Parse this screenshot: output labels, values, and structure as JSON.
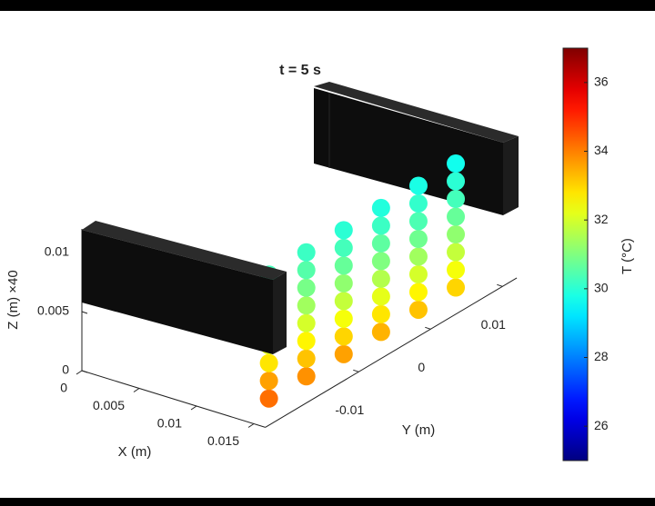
{
  "chart_data": {
    "type": "scatter3d",
    "title": "t = 5 s",
    "xlabel": "X (m)",
    "ylabel": "Y (m)",
    "zlabel": "Z (m) ×40",
    "colorbar_label": "T (°C)",
    "xlim": [
      0,
      0.016
    ],
    "ylim": [
      -0.023,
      0.012
    ],
    "zlim": [
      0,
      0.012
    ],
    "xticks": [
      0,
      0.005,
      0.01,
      0.015
    ],
    "yticks": [
      -0.01,
      0,
      0.01
    ],
    "zticks": [
      0,
      0.005,
      0.01
    ],
    "clim": [
      25,
      37
    ],
    "cticks": [
      26,
      28,
      30,
      32,
      34,
      36
    ],
    "colormap": "jet",
    "points": {
      "x": [
        0.014,
        0.014,
        0.014,
        0.014,
        0.014,
        0.014,
        0.014,
        0.014,
        0.014,
        0.014,
        0.014,
        0.014,
        0.014,
        0.014,
        0.014,
        0.014,
        0.014,
        0.014,
        0.014,
        0.014,
        0.014,
        0.014,
        0.014,
        0.014,
        0.014,
        0.014,
        0.014,
        0.014,
        0.014,
        0.014,
        0.014,
        0.014,
        0.014,
        0.014,
        0.014,
        0.014,
        0.014,
        0.014,
        0.014,
        0.014,
        0.014,
        0.014,
        0.014,
        0.014,
        0.014,
        0.014,
        0.014,
        0.014
      ],
      "y": [
        -0.0193,
        -0.0193,
        -0.0193,
        -0.0193,
        -0.0193,
        -0.0193,
        -0.0193,
        -0.0193,
        -0.0141,
        -0.0141,
        -0.0141,
        -0.0141,
        -0.0141,
        -0.0141,
        -0.0141,
        -0.0141,
        -0.0089,
        -0.0089,
        -0.0089,
        -0.0089,
        -0.0089,
        -0.0089,
        -0.0089,
        -0.0089,
        -0.0037,
        -0.0037,
        -0.0037,
        -0.0037,
        -0.0037,
        -0.0037,
        -0.0037,
        -0.0037,
        0.0015,
        0.0015,
        0.0015,
        0.0015,
        0.0015,
        0.0015,
        0.0015,
        0.0015,
        0.0067,
        0.0067,
        0.0067,
        0.0067,
        0.0067,
        0.0067,
        0.0067,
        0.0067
      ],
      "z": [
        0.0005,
        0.002,
        0.0035,
        0.005,
        0.0065,
        0.008,
        0.0095,
        0.011,
        0.0005,
        0.002,
        0.0035,
        0.005,
        0.0065,
        0.008,
        0.0095,
        0.011,
        0.0005,
        0.002,
        0.0035,
        0.005,
        0.0065,
        0.008,
        0.0095,
        0.011,
        0.0005,
        0.002,
        0.0035,
        0.005,
        0.0065,
        0.008,
        0.0095,
        0.011,
        0.0005,
        0.002,
        0.0035,
        0.005,
        0.0065,
        0.008,
        0.0095,
        0.011,
        0.0005,
        0.002,
        0.0035,
        0.005,
        0.0065,
        0.008,
        0.0095,
        0.011
      ],
      "values": [
        34.2,
        33.6,
        32.8,
        32.2,
        31.6,
        31.0,
        30.6,
        30.3,
        33.8,
        33.2,
        32.6,
        32.0,
        31.4,
        30.9,
        30.5,
        30.2,
        33.6,
        33.0,
        32.4,
        31.8,
        31.2,
        30.7,
        30.3,
        30.0,
        33.4,
        32.8,
        32.2,
        31.6,
        31.0,
        30.6,
        30.2,
        29.9,
        33.2,
        32.6,
        32.0,
        31.4,
        30.8,
        30.4,
        30.1,
        29.8,
        33.0,
        32.4,
        31.8,
        31.2,
        30.7,
        30.3,
        30.0,
        29.7
      ]
    }
  }
}
